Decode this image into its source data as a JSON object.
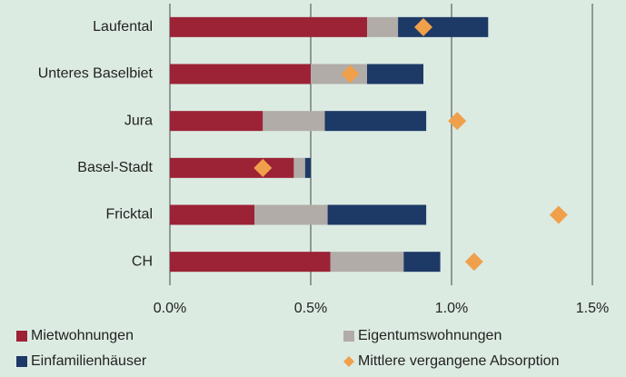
{
  "chart_data": {
    "type": "stacked-barh",
    "categories": [
      "Laufental",
      "Unteres Baselbiet",
      "Jura",
      "Basel-Stadt",
      "Fricktal",
      "CH"
    ],
    "series": [
      {
        "name": "Mietwohnungen",
        "color": "#9c2236",
        "values": [
          0.7,
          0.5,
          0.33,
          0.44,
          0.3,
          0.57
        ]
      },
      {
        "name": "Eigentumswohnungen",
        "color": "#b1aca7",
        "values": [
          0.11,
          0.2,
          0.22,
          0.04,
          0.26,
          0.26
        ]
      },
      {
        "name": "Einfamilienhäuser",
        "color": "#1d3966",
        "values": [
          0.32,
          0.2,
          0.36,
          0.02,
          0.35,
          0.13
        ]
      }
    ],
    "markers": {
      "name": "Mittlere vergangene Absorption",
      "color": "#f0a04b",
      "values": [
        0.9,
        0.64,
        1.02,
        0.33,
        1.38,
        1.08
      ]
    },
    "xlim": [
      0,
      1.5
    ],
    "xticks": [
      {
        "value": 0,
        "label": "0.0%"
      },
      {
        "value": 0.5,
        "label": "0.5%"
      },
      {
        "value": 1.0,
        "label": "1.0%"
      },
      {
        "value": 1.5,
        "label": "1.5%"
      }
    ],
    "grid": true
  }
}
